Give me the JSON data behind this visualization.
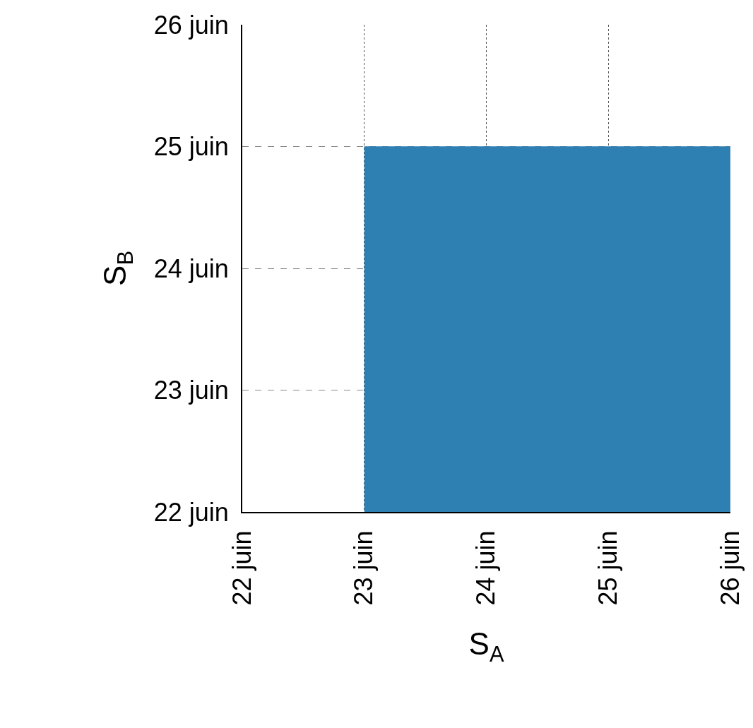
{
  "chart_data": {
    "type": "area",
    "xlabel": "S$_{A}$",
    "ylabel": "S$_{B}$",
    "x": [
      23,
      26
    ],
    "values": [
      25,
      25
    ],
    "color": "#2e7fb2",
    "xlim": [
      22,
      26
    ],
    "ylim": [
      22,
      26
    ],
    "xticks": [
      {
        "value": 22,
        "label": "22 juin"
      },
      {
        "value": 23,
        "label": "23 juin"
      },
      {
        "value": 24,
        "label": "24 juin"
      },
      {
        "value": 25,
        "label": "25 juin"
      },
      {
        "value": 26,
        "label": "26 juin"
      }
    ],
    "yticks": [
      {
        "value": 22,
        "label": "22 juin"
      },
      {
        "value": 23,
        "label": "23 juin"
      },
      {
        "value": 24,
        "label": "24 juin"
      },
      {
        "value": 25,
        "label": "25 juin"
      },
      {
        "value": 26,
        "label": "26 juin"
      }
    ],
    "grid": true
  }
}
